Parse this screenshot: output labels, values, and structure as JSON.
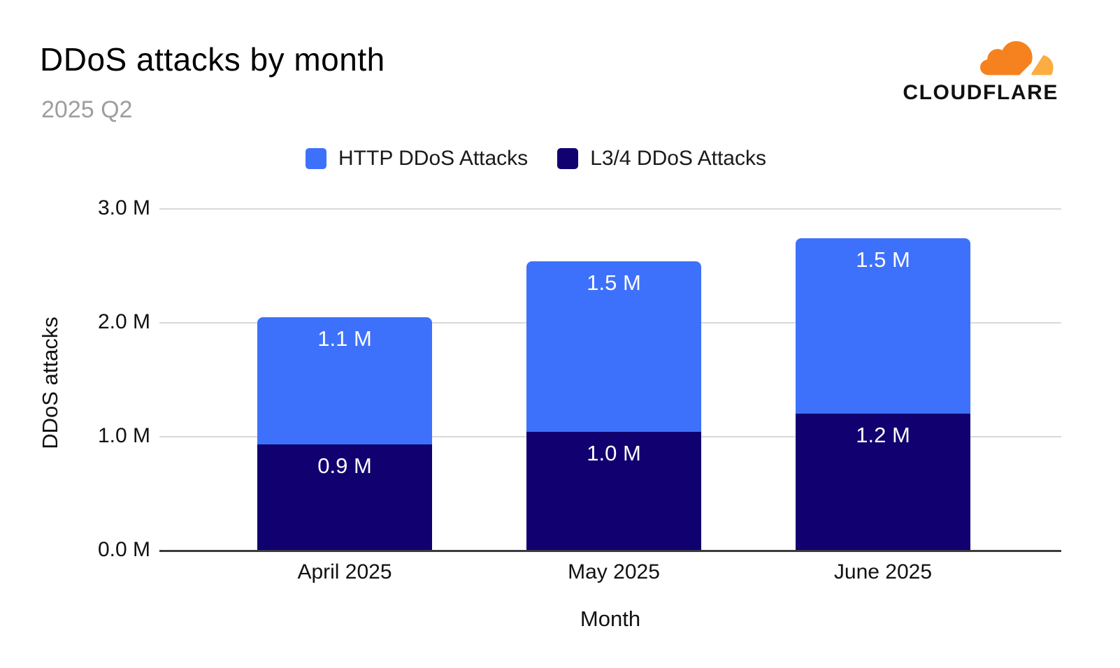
{
  "header": {
    "title": "DDoS attacks by month",
    "subtitle": "2025 Q2",
    "brand": "CLOUDFLARE"
  },
  "colors": {
    "http_blue": "#3E71FB",
    "l34_navy": "#11006F",
    "gridline": "#d9d9d9",
    "axis_line": "#3b3b3b",
    "logo_orange": "#F6821F",
    "logo_light_orange": "#FBAD41",
    "subtitle_gray": "#9e9e9e"
  },
  "legend": [
    {
      "label": "HTTP DDoS Attacks",
      "color": "#3E71FB"
    },
    {
      "label": "L3/4 DDoS Attacks",
      "color": "#11006F"
    }
  ],
  "chart_data": {
    "type": "bar",
    "stacked": true,
    "title": "DDoS attacks by month",
    "subtitle": "2025 Q2",
    "xlabel": "Month",
    "ylabel": "DDoS attacks",
    "categories": [
      "April 2025",
      "May 2025",
      "June 2025"
    ],
    "series": [
      {
        "name": "L3/4 DDoS Attacks",
        "color": "#11006F",
        "values": [
          0.93,
          1.04,
          1.2
        ],
        "labels": [
          "0.9 M",
          "1.0 M",
          "1.2 M"
        ]
      },
      {
        "name": "HTTP DDoS Attacks",
        "color": "#3E71FB",
        "values": [
          1.12,
          1.5,
          1.54
        ],
        "labels": [
          "1.1 M",
          "1.5 M",
          "1.5 M"
        ]
      }
    ],
    "totals_displayed": [
      2.0,
      2.5,
      2.7
    ],
    "ylim": [
      0,
      3
    ],
    "yticks": [
      {
        "value": 0,
        "label": "0.0 M"
      },
      {
        "value": 1,
        "label": "1.0 M"
      },
      {
        "value": 2,
        "label": "2.0 M"
      },
      {
        "value": 3,
        "label": "3.0 M"
      }
    ],
    "grid": true,
    "legend_position": "top"
  }
}
